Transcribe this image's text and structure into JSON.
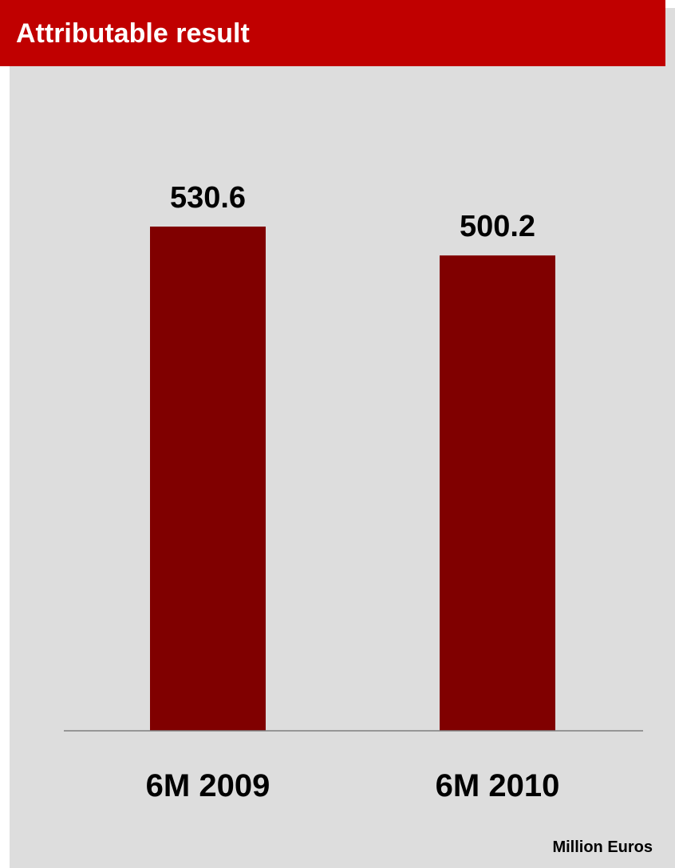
{
  "header": {
    "title": "Attributable result"
  },
  "unit_label": "Million Euros",
  "colors": {
    "header_bg": "#c00000",
    "panel_bg": "#dddddd",
    "bar": "#800000",
    "axis": "#7f7f7f"
  },
  "chart_data": {
    "type": "bar",
    "title": "Attributable result",
    "categories": [
      "6M 2009",
      "6M 2010"
    ],
    "values": [
      530.6,
      500.2
    ],
    "value_labels": [
      "530.6",
      "500.2"
    ],
    "unit": "Million Euros",
    "ylim": [
      0,
      530.6
    ],
    "grid": false,
    "legend": "none"
  }
}
